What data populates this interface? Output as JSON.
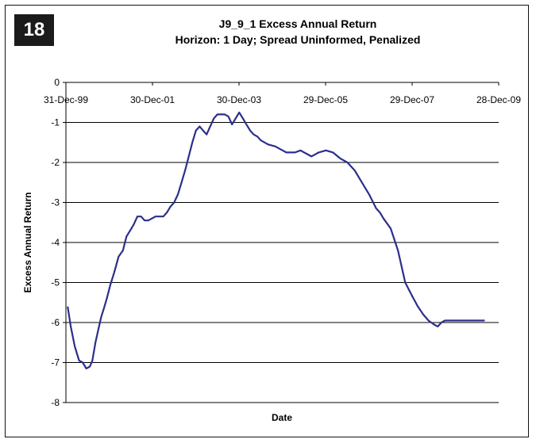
{
  "badge": {
    "number": "18"
  },
  "chart_data": {
    "type": "line",
    "title": "J9_9_1 Excess Annual Return",
    "subtitle": "Horizon: 1 Day; Spread Uninformed, Penalized",
    "xlabel": "Date",
    "ylabel": "Excess Annual Return",
    "ylim": [
      -8,
      0
    ],
    "yticks": [
      0,
      -1,
      -2,
      -3,
      -4,
      -5,
      -6,
      -7,
      -8
    ],
    "xlim": [
      "1999-12-31",
      "2009-12-28"
    ],
    "xticks": [
      {
        "date": "1999-12-31",
        "label": "31-Dec-99"
      },
      {
        "date": "2001-12-30",
        "label": "30-Dec-01"
      },
      {
        "date": "2003-12-30",
        "label": "30-Dec-03"
      },
      {
        "date": "2005-12-29",
        "label": "29-Dec-05"
      },
      {
        "date": "2007-12-29",
        "label": "29-Dec-07"
      },
      {
        "date": "2009-12-28",
        "label": "28-Dec-09"
      }
    ],
    "grid": {
      "horizontal": true,
      "vertical": false
    },
    "line_color": "#2b2f8a",
    "series": [
      {
        "x": [
          "2000-01-15",
          "2000-02-10",
          "2000-03-15",
          "2000-04-20",
          "2000-05-20",
          "2000-06-20",
          "2000-07-20",
          "2000-08-10",
          "2000-09-05",
          "2000-10-01",
          "2000-10-25",
          "2000-11-15",
          "2000-12-10",
          "2001-01-10",
          "2001-02-10",
          "2001-03-20",
          "2001-04-25",
          "2001-05-25",
          "2001-06-25",
          "2001-07-25",
          "2001-08-25",
          "2001-09-25",
          "2001-10-25",
          "2001-11-25",
          "2001-12-25",
          "2002-01-25",
          "2002-03-01",
          "2002-04-01",
          "2002-05-01",
          "2002-06-01",
          "2002-07-01",
          "2002-08-01",
          "2002-09-01",
          "2002-10-01",
          "2002-11-01",
          "2002-12-01",
          "2003-01-01",
          "2003-02-01",
          "2003-03-01",
          "2003-04-01",
          "2003-05-01",
          "2003-06-01",
          "2003-07-01",
          "2003-08-01",
          "2003-09-01",
          "2003-10-01",
          "2003-11-01",
          "2003-12-01",
          "2004-01-01",
          "2004-02-01",
          "2004-03-01",
          "2004-04-01",
          "2004-05-01",
          "2004-06-01",
          "2004-07-01",
          "2004-09-01",
          "2004-11-01",
          "2005-01-01",
          "2005-02-01",
          "2005-03-01",
          "2005-04-15",
          "2005-06-01",
          "2005-07-01",
          "2005-08-01",
          "2005-09-01",
          "2005-10-01",
          "2005-11-01",
          "2006-01-01",
          "2006-03-01",
          "2006-05-01",
          "2006-07-01",
          "2006-09-01",
          "2006-11-01",
          "2007-01-01",
          "2007-03-01",
          "2007-04-01",
          "2007-05-01",
          "2007-07-01",
          "2007-09-01",
          "2007-11-01",
          "2008-01-01",
          "2008-02-15",
          "2008-04-01",
          "2008-05-15",
          "2008-07-01",
          "2008-08-01",
          "2008-09-01",
          "2008-10-01",
          "2008-11-01",
          "2008-12-01",
          "2009-01-01",
          "2009-02-01",
          "2009-03-01",
          "2009-04-01",
          "2009-05-01",
          "2009-06-01",
          "2009-07-01",
          "2009-08-01",
          "2009-09-01"
        ],
        "y": [
          -5.6,
          -6.1,
          -6.6,
          -6.95,
          -7.0,
          -7.15,
          -7.1,
          -6.95,
          -6.5,
          -6.15,
          -5.85,
          -5.65,
          -5.4,
          -5.05,
          -4.75,
          -4.35,
          -4.2,
          -3.85,
          -3.7,
          -3.55,
          -3.35,
          -3.35,
          -3.45,
          -3.45,
          -3.4,
          -3.35,
          -3.35,
          -3.35,
          -3.25,
          -3.1,
          -3.0,
          -2.8,
          -2.5,
          -2.2,
          -1.85,
          -1.5,
          -1.2,
          -1.1,
          -1.2,
          -1.3,
          -1.1,
          -0.9,
          -0.8,
          -0.8,
          -0.8,
          -0.85,
          -1.05,
          -0.9,
          -0.75,
          -0.9,
          -1.05,
          -1.2,
          -1.3,
          -1.35,
          -1.45,
          -1.55,
          -1.6,
          -1.7,
          -1.75,
          -1.75,
          -1.75,
          -1.7,
          -1.75,
          -1.8,
          -1.85,
          -1.8,
          -1.75,
          -1.7,
          -1.75,
          -1.9,
          -2.0,
          -2.2,
          -2.5,
          -2.8,
          -3.15,
          -3.25,
          -3.4,
          -3.65,
          -4.2,
          -5.0,
          -5.35,
          -5.6,
          -5.8,
          -5.95,
          -6.05,
          -6.1,
          -6.0,
          -5.95,
          -5.95,
          -5.95,
          -5.95,
          -5.95,
          -5.95,
          -5.95,
          -5.95,
          -5.95,
          -5.95,
          -5.95,
          -5.95
        ]
      }
    ]
  }
}
